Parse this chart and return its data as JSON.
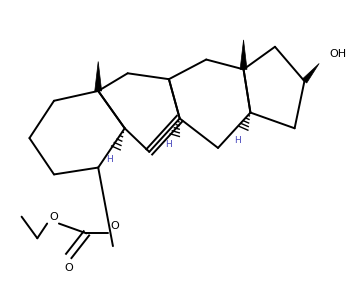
{
  "bg_color": "#ffffff",
  "line_color": "#000000",
  "h_color": "#4444bb",
  "line_width": 1.4,
  "fig_width": 3.48,
  "fig_height": 2.87,
  "xlim": [
    0,
    348
  ],
  "ylim": [
    0,
    287
  ]
}
